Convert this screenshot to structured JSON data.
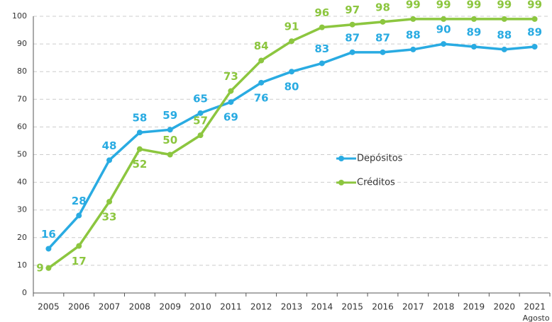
{
  "chart_data": {
    "type": "line",
    "categories": [
      "2005",
      "2006",
      "2007",
      "2008",
      "2009",
      "2010",
      "2011",
      "2012",
      "2013",
      "2014",
      "2015",
      "2016",
      "2017",
      "2018",
      "2019",
      "2020",
      "2021"
    ],
    "x_annotation": "Agosto",
    "series": [
      {
        "name": "Depósitos",
        "color": "#29abe2",
        "values": [
          16,
          28,
          48,
          58,
          59,
          65,
          69,
          76,
          80,
          83,
          87,
          87,
          88,
          90,
          89,
          88,
          89
        ]
      },
      {
        "name": "Créditos",
        "color": "#8cc63f",
        "values": [
          9,
          17,
          33,
          52,
          50,
          57,
          73,
          84,
          91,
          96,
          97,
          98,
          99,
          99,
          99,
          99,
          99
        ]
      }
    ],
    "ylim": [
      0,
      100
    ],
    "yticks": [
      0,
      10,
      20,
      30,
      40,
      50,
      60,
      70,
      80,
      90,
      100
    ],
    "grid": true,
    "legend": "center"
  }
}
